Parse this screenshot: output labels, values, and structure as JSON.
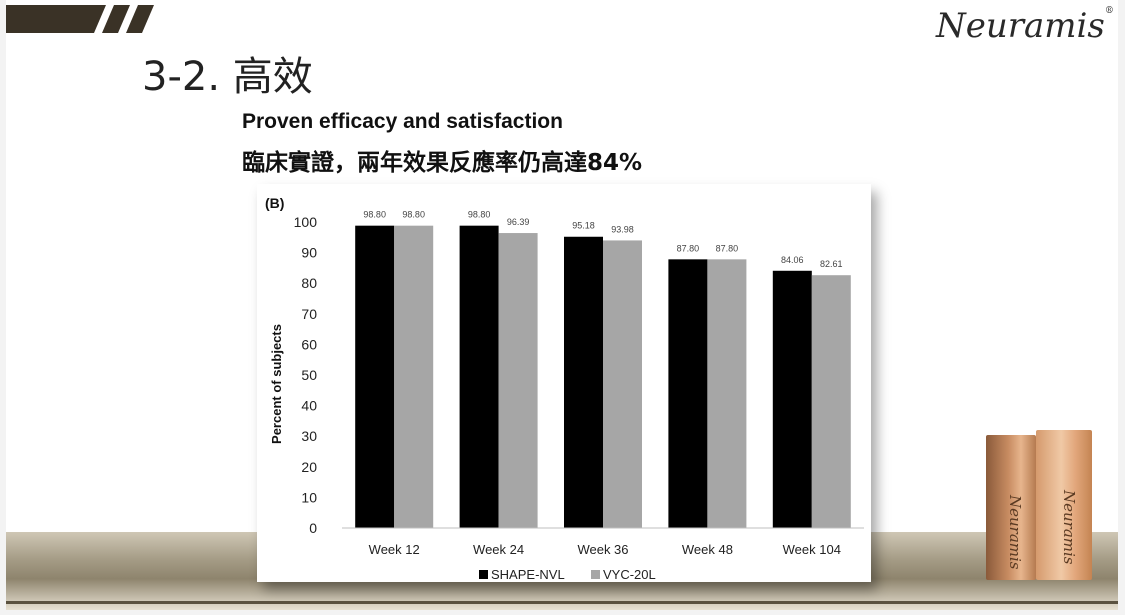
{
  "slide": {
    "title": "3-2. 高效",
    "subtitle_en": "Proven efficacy and satisfaction",
    "subtitle_zh": "臨床實證，兩年效果反應率仍高達84%",
    "brand": "Neuramis",
    "brand_mark": "®",
    "product_label": "Neuramis"
  },
  "colors": {
    "stripe": "#3a3226",
    "series_1": "#000000",
    "series_2": "#a6a6a6"
  },
  "chart_data": {
    "type": "bar",
    "panel_label": "(B)",
    "categories": [
      "Week 12",
      "Week 24",
      "Week 36",
      "Week 48",
      "Week 104"
    ],
    "series": [
      {
        "name": "SHAPE-NVL",
        "values": [
          98.8,
          98.8,
          95.18,
          87.8,
          84.06
        ],
        "labels": [
          "98.80",
          "98.80",
          "95.18",
          "87.80",
          "84.06"
        ]
      },
      {
        "name": "VYC-20L",
        "values": [
          98.8,
          96.39,
          93.98,
          87.8,
          82.61
        ],
        "labels": [
          "98.80",
          "96.39",
          "93.98",
          "87.80",
          "82.61"
        ]
      }
    ],
    "ylabel": "Percent of subjects",
    "xlabel": "",
    "ylim": [
      0,
      100
    ],
    "yticks": [
      "0",
      "10",
      "20",
      "30",
      "40",
      "50",
      "60",
      "70",
      "80",
      "90",
      "100"
    ],
    "legend_position": "bottom",
    "grid": false
  }
}
